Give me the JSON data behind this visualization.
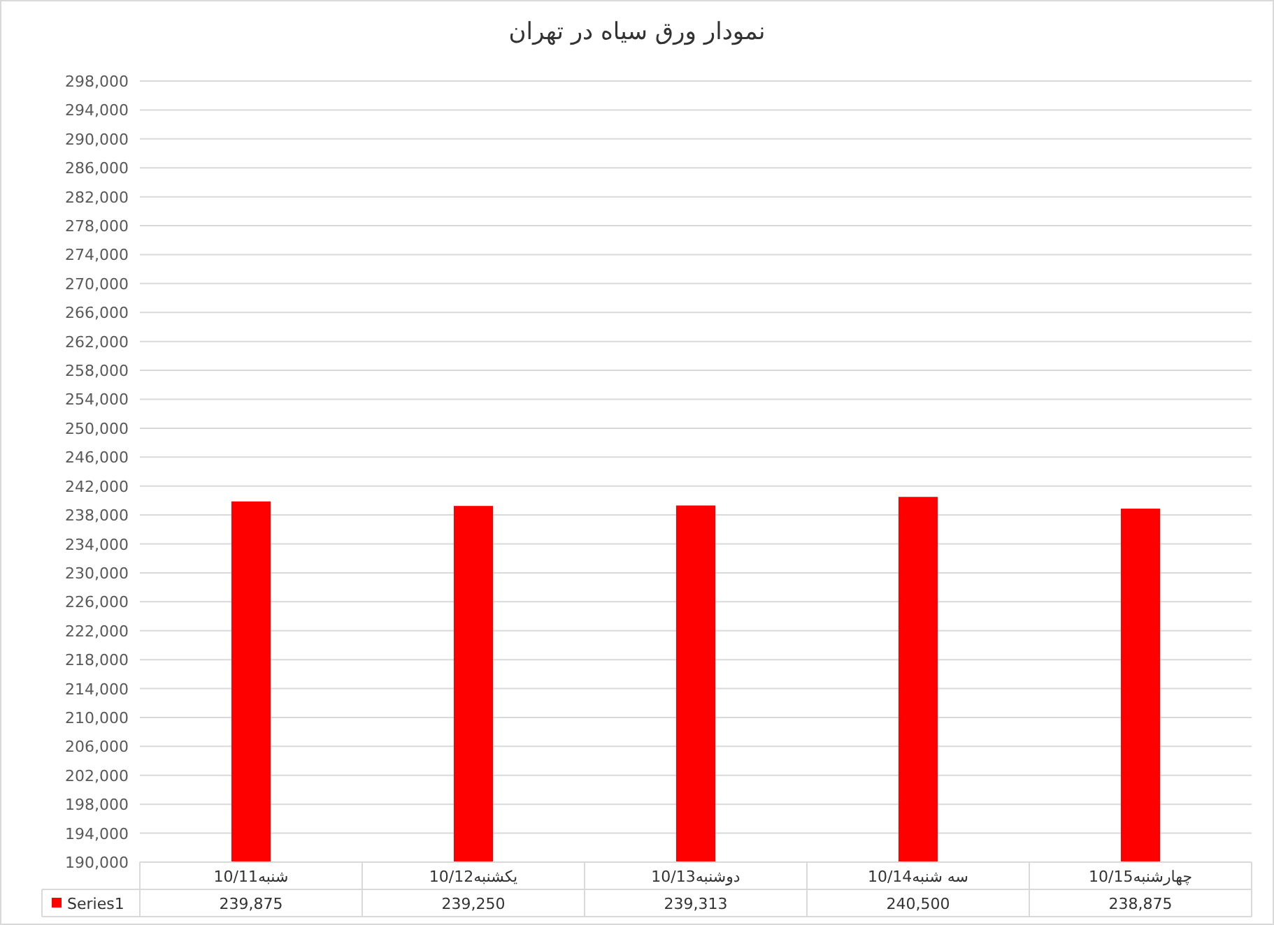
{
  "chart_data": {
    "type": "bar",
    "title": "نمودار ورق سیاه در تهران",
    "categories": [
      "شنبه10/11",
      "یکشنبه10/12",
      "دوشنبه10/13",
      "سه شنبه10/14",
      "چهارشنبه10/15"
    ],
    "series": [
      {
        "name": "Series1",
        "color": "#ff0000",
        "values": [
          239875,
          239250,
          239313,
          240500,
          238875
        ],
        "value_labels": [
          "239,875",
          "239,250",
          "239,313",
          "240,500",
          "238,875"
        ]
      }
    ],
    "ylim": [
      190000,
      298000
    ],
    "yticks": [
      {
        "value": 190000,
        "label": "190,000"
      },
      {
        "value": 194000,
        "label": "194,000"
      },
      {
        "value": 198000,
        "label": "198,000"
      },
      {
        "value": 202000,
        "label": "202,000"
      },
      {
        "value": 206000,
        "label": "206,000"
      },
      {
        "value": 210000,
        "label": "210,000"
      },
      {
        "value": 214000,
        "label": "214,000"
      },
      {
        "value": 218000,
        "label": "218,000"
      },
      {
        "value": 222000,
        "label": "222,000"
      },
      {
        "value": 226000,
        "label": "226,000"
      },
      {
        "value": 230000,
        "label": "230,000"
      },
      {
        "value": 234000,
        "label": "234,000"
      },
      {
        "value": 238000,
        "label": "238,000"
      },
      {
        "value": 242000,
        "label": "242,000"
      },
      {
        "value": 246000,
        "label": "246,000"
      },
      {
        "value": 250000,
        "label": "250,000"
      },
      {
        "value": 254000,
        "label": "254,000"
      },
      {
        "value": 258000,
        "label": "258,000"
      },
      {
        "value": 262000,
        "label": "262,000"
      },
      {
        "value": 266000,
        "label": "266,000"
      },
      {
        "value": 270000,
        "label": "270,000"
      },
      {
        "value": 274000,
        "label": "274,000"
      },
      {
        "value": 278000,
        "label": "278,000"
      },
      {
        "value": 282000,
        "label": "282,000"
      },
      {
        "value": 286000,
        "label": "286,000"
      },
      {
        "value": 290000,
        "label": "290,000"
      },
      {
        "value": 294000,
        "label": "294,000"
      },
      {
        "value": 298000,
        "label": "298,000"
      }
    ],
    "grid": "y",
    "legend": "bottom"
  }
}
